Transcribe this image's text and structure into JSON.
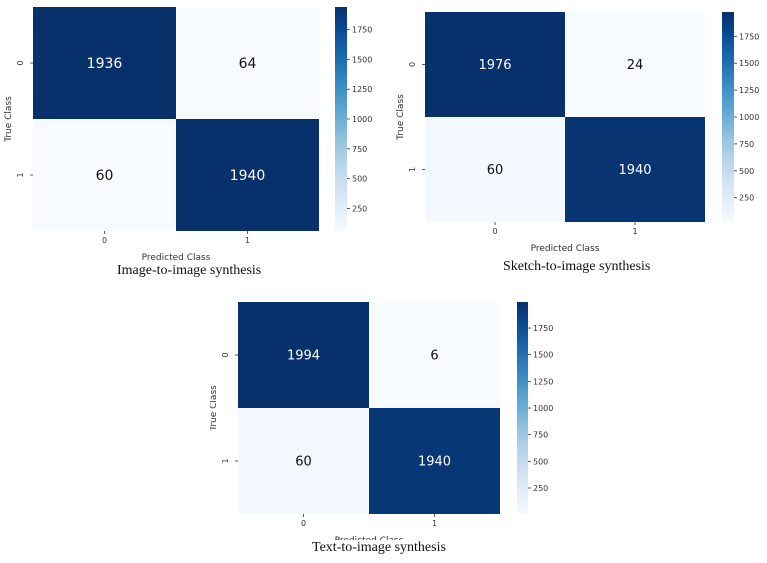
{
  "chart_data": [
    {
      "type": "heatmap",
      "caption": "Image-to-image synthesis",
      "xlabel": "Predicted Class",
      "ylabel": "True Class",
      "x_categories": [
        "0",
        "1"
      ],
      "y_categories": [
        "0",
        "1"
      ],
      "values": [
        [
          1936,
          64
        ],
        [
          60,
          1940
        ]
      ],
      "colorbar": {
        "ticks": [
          "250",
          "500",
          "750",
          "1000",
          "1250",
          "1500",
          "1750"
        ],
        "tick_values": [
          250,
          500,
          750,
          1000,
          1250,
          1500,
          1750
        ],
        "min": 60,
        "max": 1940
      },
      "colormap": "Blues"
    },
    {
      "type": "heatmap",
      "caption": "Sketch-to-image synthesis",
      "xlabel": "Predicted Class",
      "ylabel": "True Class",
      "x_categories": [
        "0",
        "1"
      ],
      "y_categories": [
        "0",
        "1"
      ],
      "values": [
        [
          1976,
          24
        ],
        [
          60,
          1940
        ]
      ],
      "colorbar": {
        "ticks": [
          "250",
          "500",
          "750",
          "1000",
          "1250",
          "1500",
          "1750"
        ],
        "tick_values": [
          250,
          500,
          750,
          1000,
          1250,
          1500,
          1750
        ],
        "min": 24,
        "max": 1976
      },
      "colormap": "Blues"
    },
    {
      "type": "heatmap",
      "caption": "Text-to-image synthesis",
      "xlabel": "Predicted Class",
      "ylabel": "True Class",
      "x_categories": [
        "0",
        "1"
      ],
      "y_categories": [
        "0",
        "1"
      ],
      "values": [
        [
          1994,
          6
        ],
        [
          60,
          1940
        ]
      ],
      "colorbar": {
        "ticks": [
          "250",
          "500",
          "750",
          "1000",
          "1250",
          "1500",
          "1750"
        ],
        "tick_values": [
          250,
          500,
          750,
          1000,
          1250,
          1500,
          1750
        ],
        "min": 6,
        "max": 1994
      },
      "colormap": "Blues"
    }
  ]
}
